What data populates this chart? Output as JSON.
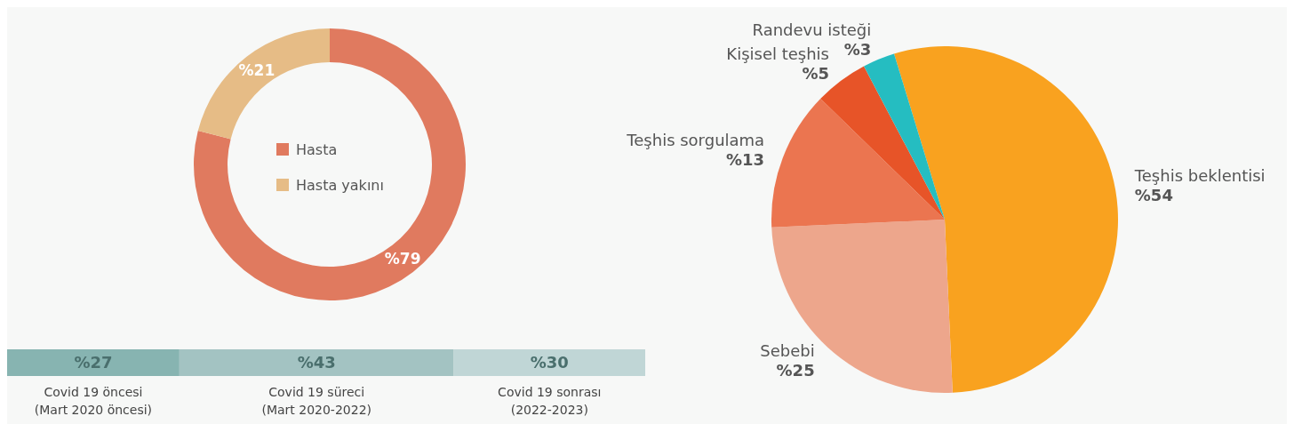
{
  "chart_data": [
    {
      "type": "donut",
      "categories": [
        "Hasta",
        "Hasta yakını"
      ],
      "values": [
        79,
        21
      ],
      "colors": [
        "#e07a5f",
        "#e6bc86"
      ],
      "value_labels": [
        "%79",
        "%21"
      ],
      "legend": "center"
    },
    {
      "type": "bar",
      "orientation": "horizontal",
      "stacked": true,
      "categories": [
        null
      ],
      "legend": "bottom",
      "series": [
        {
          "name": "Covid 19 öncesi\n(Mart 2020 öncesi)",
          "color": "#87b4b1",
          "values": [
            27
          ],
          "value_labels": [
            "%27"
          ]
        },
        {
          "name": "Covid 19 süreci\n(Mart 2020-2022)",
          "color": "#a3c3c2",
          "values": [
            43
          ],
          "value_labels": [
            "%43"
          ]
        },
        {
          "name": "Covid 19 sonrası\n(2022-2023)",
          "color": "#c0d6d6",
          "values": [
            30
          ],
          "value_labels": [
            "%30"
          ]
        }
      ]
    },
    {
      "type": "pie",
      "categories": [
        "Teşhis beklentisi",
        "Sebebi",
        "Teşhis sorgulama",
        "Kişisel teşhis",
        "Randevu isteği"
      ],
      "values": [
        54,
        25,
        13,
        5,
        3
      ],
      "colors": [
        "#f9a21f",
        "#eda68c",
        "#eb7550",
        "#e75428",
        "#25bdc1"
      ],
      "value_labels": [
        "%54",
        "%25",
        "%13",
        "%5",
        "%3"
      ]
    }
  ]
}
